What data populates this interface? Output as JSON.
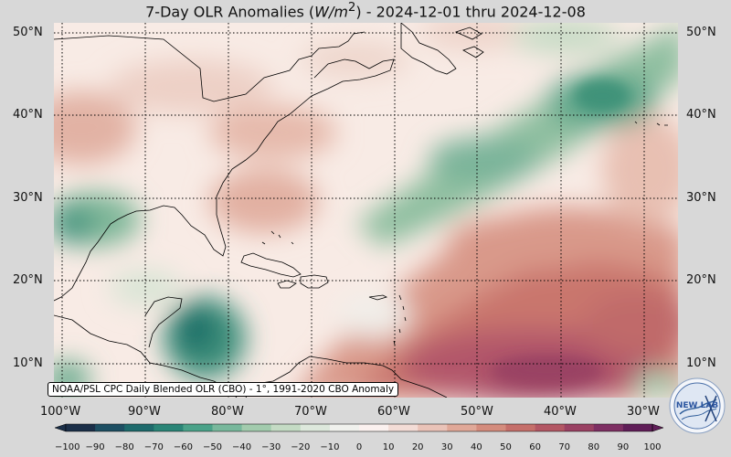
{
  "title": {
    "prefix": "7-Day OLR Anomalies (",
    "unit": "W/m",
    "unit_sup": "2",
    "suffix": ") - 2024-12-01 thru 2024-12-08"
  },
  "map": {
    "lat_labels": [
      "50°N",
      "40°N",
      "30°N",
      "20°N",
      "10°N"
    ],
    "lon_labels": [
      "100°W",
      "90°W",
      "80°W",
      "70°W",
      "60°W",
      "50°W",
      "40°W",
      "30°W"
    ],
    "credit": "NOAA/PSL CPC Daily Blended OLR (CBO) - 1°, 1991-2020 CBO Anomaly"
  },
  "colorbar": {
    "ticks": [
      "−100",
      "−90",
      "−80",
      "−70",
      "−60",
      "−50",
      "−40",
      "−30",
      "−20",
      "−10",
      "0",
      "10",
      "20",
      "30",
      "40",
      "50",
      "60",
      "70",
      "80",
      "90",
      "100"
    ],
    "colors": [
      "#1b2f49",
      "#1e4f63",
      "#1e6a6c",
      "#2a8577",
      "#4aa289",
      "#78b89c",
      "#a2cbad",
      "#c4dbc4",
      "#dde8dc",
      "#f0f1ed",
      "#fbf1ef",
      "#f3dcd6",
      "#eac3b8",
      "#e0a898",
      "#d48c7d",
      "#c56f6a",
      "#b35764",
      "#9a4163",
      "#7e2f63",
      "#601e58"
    ]
  },
  "logo": {
    "text": "NEW LAB"
  },
  "colors": {
    "page_bg": "#d8d8d8",
    "map_bg": "#f9ece6",
    "positive": "#c8736c",
    "negative": "#4f9a82"
  }
}
